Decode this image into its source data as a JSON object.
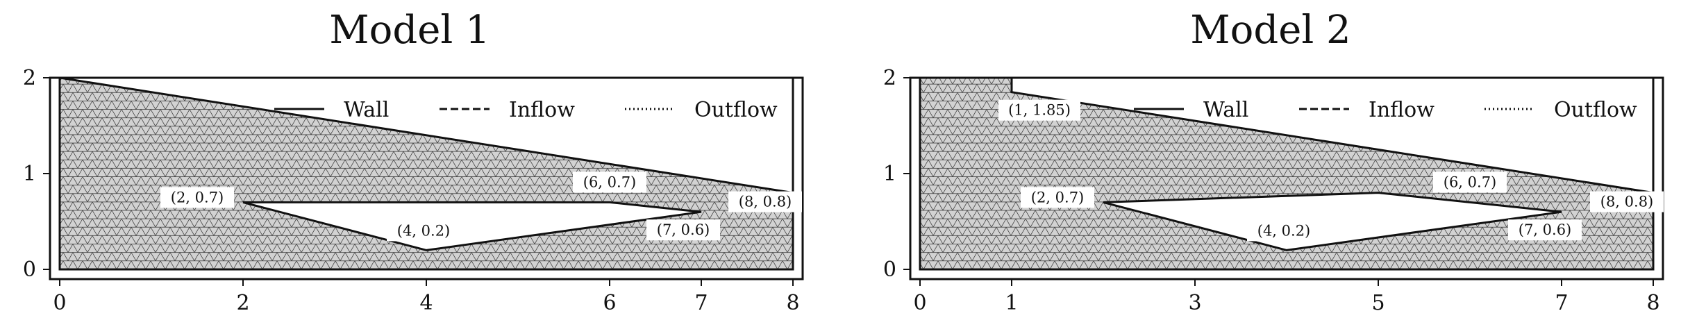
{
  "figures": [
    {
      "title": "Model 1",
      "xticks": [
        0,
        2,
        4,
        6,
        7,
        8
      ],
      "yticks": [
        0,
        1,
        2
      ],
      "xlim": [
        0,
        8
      ],
      "ylim": [
        0,
        2
      ],
      "outer": [
        [
          0,
          0
        ],
        [
          8,
          0
        ],
        [
          8,
          0.8
        ],
        [
          0,
          2
        ]
      ],
      "hole": [
        [
          2,
          0.7
        ],
        [
          6,
          0.7
        ],
        [
          7,
          0.6
        ],
        [
          4,
          0.2
        ]
      ],
      "walls": [
        [
          [
            0,
            2
          ],
          [
            8,
            0.8
          ]
        ],
        [
          [
            0,
            0
          ],
          [
            8,
            0
          ]
        ],
        [
          [
            2,
            0.7
          ],
          [
            6,
            0.7
          ],
          [
            7,
            0.6
          ],
          [
            4,
            0.2
          ],
          [
            2,
            0.7
          ]
        ]
      ],
      "inflow": [
        [
          0,
          0
        ],
        [
          0,
          2
        ]
      ],
      "outflow": [
        [
          8,
          0
        ],
        [
          8,
          0.8
        ]
      ],
      "points": [
        {
          "x": 2,
          "y": 0.7,
          "label": "(2, 0.7)"
        },
        {
          "x": 6,
          "y": 0.7,
          "label": "(6, 0.7)"
        },
        {
          "x": 8,
          "y": 0.8,
          "label": "(8, 0.8)"
        },
        {
          "x": 7,
          "y": 0.6,
          "label": "(7, 0.6)"
        },
        {
          "x": 4,
          "y": 0.2,
          "label": "(4, 0.2)"
        }
      ],
      "legend": [
        "Wall",
        "Inflow",
        "Outflow"
      ]
    },
    {
      "title": "Model 2",
      "xticks": [
        0,
        1,
        3,
        5,
        7,
        8
      ],
      "yticks": [
        0,
        1,
        2
      ],
      "xlim": [
        0,
        8
      ],
      "ylim": [
        0,
        2
      ],
      "outer": [
        [
          0,
          0
        ],
        [
          8,
          0
        ],
        [
          8,
          0.8
        ],
        [
          1,
          1.85
        ],
        [
          1,
          2
        ],
        [
          0,
          2
        ]
      ],
      "hole": [
        [
          2,
          0.7
        ],
        [
          5,
          0.8
        ],
        [
          7,
          0.6
        ],
        [
          4,
          0.2
        ]
      ],
      "walls": [
        [
          [
            0,
            2
          ],
          [
            1,
            2
          ],
          [
            1,
            1.85
          ],
          [
            8,
            0.8
          ]
        ],
        [
          [
            0,
            0
          ],
          [
            8,
            0
          ]
        ],
        [
          [
            2,
            0.7
          ],
          [
            5,
            0.8
          ],
          [
            7,
            0.6
          ],
          [
            4,
            0.2
          ],
          [
            2,
            0.7
          ]
        ]
      ],
      "inflow": [
        [
          0,
          0
        ],
        [
          0,
          2
        ]
      ],
      "outflow": [
        [
          8,
          0
        ],
        [
          8,
          0.8
        ]
      ],
      "points": [
        {
          "x": 1,
          "y": 1.85,
          "label": "(1, 1.85)"
        },
        {
          "x": 2,
          "y": 0.7,
          "label": "(2, 0.7)"
        },
        {
          "x": 6,
          "y": 0.7,
          "label": "(6, 0.7)"
        },
        {
          "x": 8,
          "y": 0.8,
          "label": "(8, 0.8)"
        },
        {
          "x": 7,
          "y": 0.6,
          "label": "(7, 0.6)"
        },
        {
          "x": 4,
          "y": 0.2,
          "label": "(4, 0.2)"
        }
      ],
      "legend": [
        "Wall",
        "Inflow",
        "Outflow"
      ]
    }
  ]
}
